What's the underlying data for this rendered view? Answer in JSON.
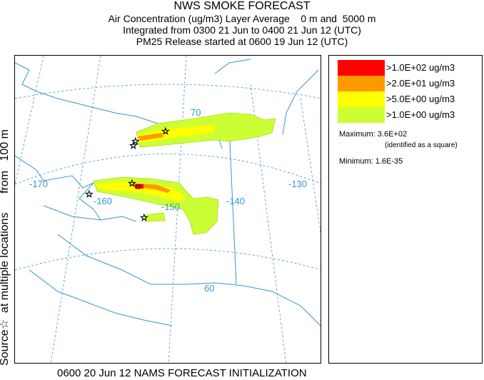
{
  "title": {
    "main": "NWS SMOKE FORECAST",
    "line1": "Air Concentration (ug/m3) Layer Average    0 m and  5000 m",
    "line2": "Integrated from 0300 21 Jun to 0400 21 Jun 12 (UTC)",
    "line3": "PM25 Release started at 0600 19 Jun 12 (UTC)"
  },
  "side_label": "Source☆  at multiple locations      from   100 m",
  "footer": "0600 20 Jun 12 NAMS FORECAST INITIALIZATION",
  "map": {
    "longitude_labels": [
      "-170",
      "-160",
      "-150",
      "-140",
      "-130"
    ],
    "latitude_labels": [
      "70",
      "60"
    ],
    "source_marker_icon": "star-icon",
    "colors": {
      "coastline": "#3399cc",
      "graticule": "#3399cc",
      "level_100": "#ff0000",
      "level_20": "#ff9900",
      "level_5": "#ffff00",
      "level_1": "#ccff33"
    }
  },
  "legend": {
    "entries": [
      {
        "label": ">1.0E+02 ug/m3",
        "color": "#ff0000"
      },
      {
        "label": ">2.0E+01 ug/m3",
        "color": "#ff9900"
      },
      {
        "label": ">5.0E+00 ug/m3",
        "color": "#ffff00"
      },
      {
        "label": ">1.0E+00 ug/m3",
        "color": "#ccff33"
      }
    ],
    "maximum": "Maximum: 3.6E+02",
    "maximum_note": "(identified as a square)",
    "minimum": "Minimum: 1.6E-35"
  }
}
